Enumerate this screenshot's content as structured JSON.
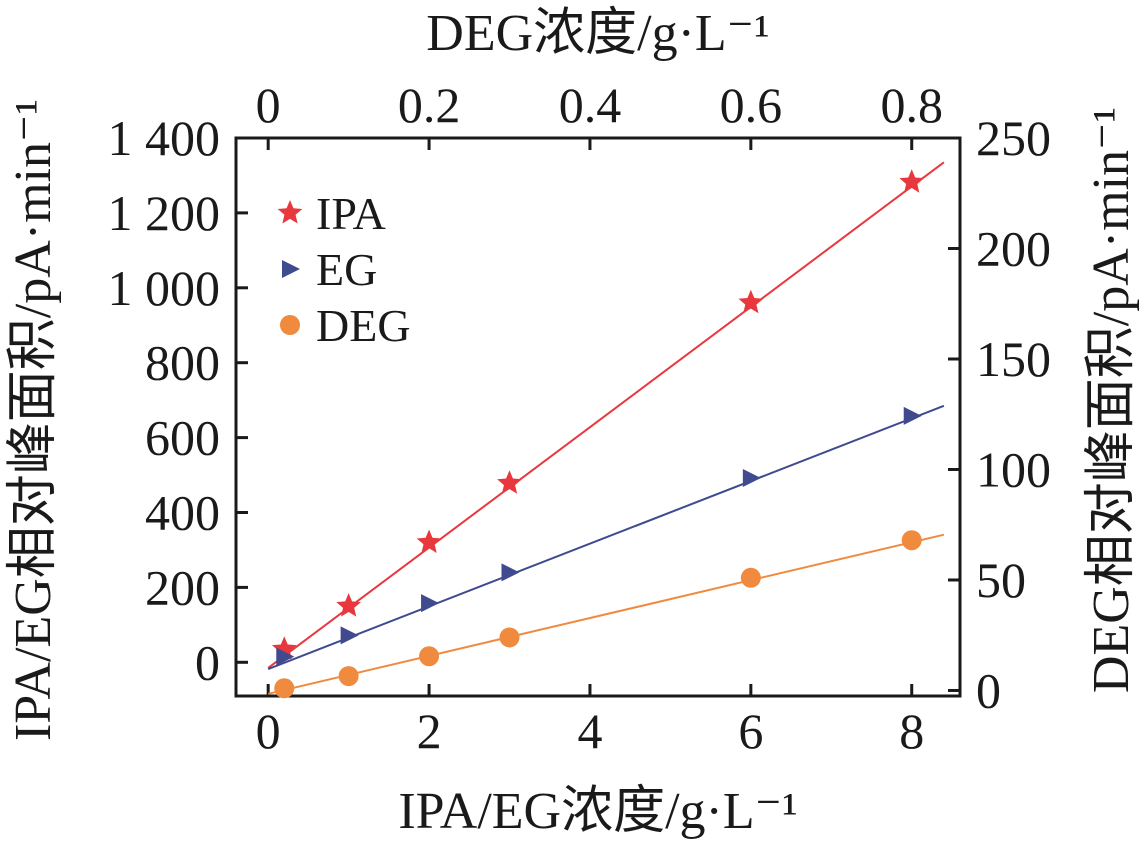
{
  "chart_data": {
    "type": "scatter",
    "title": "",
    "xlabel_bottom": "IPA/EG浓度/g·L⁻¹",
    "xlabel_top": "DEG浓度/g·L⁻¹",
    "ylabel_left": "IPA/EG相对峰面积/pA·min⁻¹",
    "ylabel_right": "DEG相对峰面积/pA·min⁻¹",
    "x_bottom": {
      "lim": [
        -0.4,
        8.6
      ],
      "ticks": [
        0,
        2,
        4,
        6,
        8
      ],
      "tick_labels": [
        "0",
        "2",
        "4",
        "6",
        "8"
      ]
    },
    "x_top": {
      "lim": [
        -0.04,
        0.86
      ],
      "ticks": [
        0,
        0.2,
        0.4,
        0.6,
        0.8
      ],
      "tick_labels": [
        "0",
        "0.2",
        "0.4",
        "0.6",
        "0.8"
      ]
    },
    "y_left": {
      "lim": [
        -90,
        1400
      ],
      "ticks": [
        0,
        200,
        400,
        600,
        800,
        1000,
        1200,
        1400
      ],
      "tick_labels": [
        "0",
        "200",
        "400",
        "600",
        "800",
        "1 000",
        "1 200",
        "1 400"
      ]
    },
    "y_right": {
      "lim": [
        -2.5,
        250
      ],
      "ticks": [
        0,
        50,
        100,
        150,
        200,
        250
      ],
      "tick_labels": [
        "0",
        "50",
        "100",
        "150",
        "200",
        "250"
      ]
    },
    "legend_position": "top-left",
    "grid": false,
    "series": [
      {
        "name": "IPA",
        "axis": "bottom-left",
        "marker": "star",
        "color": "#e8383d",
        "x": [
          0.2,
          1,
          2,
          3,
          6,
          8
        ],
        "y": [
          35,
          150,
          320,
          478,
          960,
          1282
        ],
        "fit": {
          "x": [
            0,
            8.4
          ],
          "y": [
            -15,
            1335
          ]
        }
      },
      {
        "name": "EG",
        "axis": "bottom-left",
        "marker": "triangle-right",
        "color": "#3f4a8f",
        "x": [
          0.2,
          1,
          2,
          3,
          6,
          8
        ],
        "y": [
          15,
          72,
          158,
          240,
          492,
          658
        ],
        "fit": {
          "x": [
            0,
            8.4
          ],
          "y": [
            -18,
            685
          ]
        }
      },
      {
        "name": "DEG",
        "axis": "top-right",
        "marker": "circle",
        "color": "#ef8a3e",
        "x": [
          0.02,
          0.1,
          0.2,
          0.3,
          0.6,
          0.8
        ],
        "y": [
          1.0,
          6.5,
          15.5,
          24.0,
          51.0,
          68.0
        ],
        "fit": {
          "x": [
            0,
            0.84
          ],
          "y": [
            -1.5,
            70.5
          ]
        }
      }
    ]
  }
}
